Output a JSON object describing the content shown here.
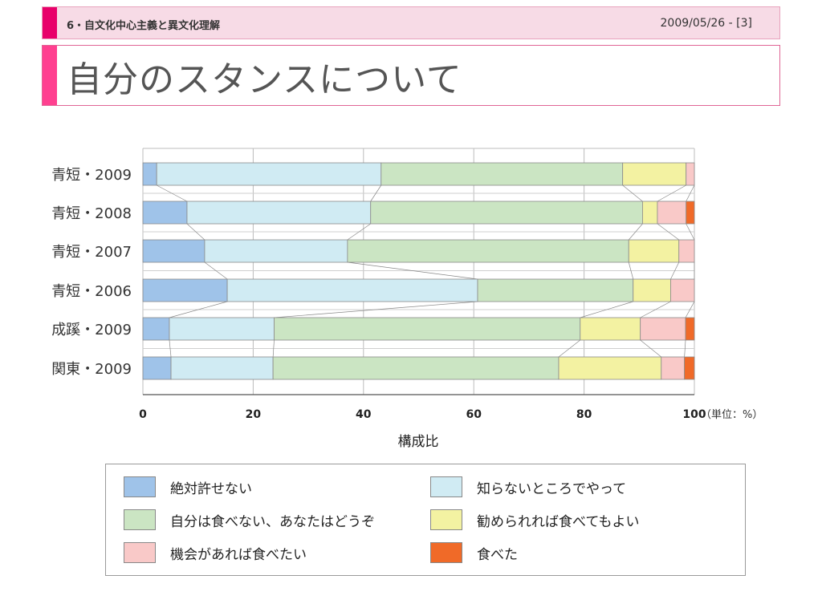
{
  "header": {
    "section": "6・自文化中心主義と異文化理解",
    "date": "2009/05/26 - [3]",
    "title": "自分のスタンスについて"
  },
  "colors": {
    "accent_header": "#e8006a",
    "accent_title": "#ff4090",
    "header_bg": "#f7dbe6"
  },
  "chart_data": {
    "type": "bar",
    "orientation": "horizontal",
    "stacked": true,
    "categories": [
      "青短・2009",
      "青短・2008",
      "青短・2007",
      "青短・2006",
      "成蹊・2009",
      "関東・2009"
    ],
    "series": [
      {
        "name": "絶対許せない",
        "color": "#9fc3e9",
        "values": [
          2.5,
          8.0,
          11.2,
          15.3,
          4.8,
          5.1
        ]
      },
      {
        "name": "知らないところでやって",
        "color": "#d0ebf3",
        "values": [
          40.7,
          33.3,
          25.9,
          45.4,
          19.0,
          18.5
        ]
      },
      {
        "name": "自分は食べない、あなたはどうぞ",
        "color": "#cbe5c3",
        "values": [
          43.8,
          49.3,
          51.0,
          28.2,
          55.5,
          51.8
        ]
      },
      {
        "name": "勧められれば食べてもよい",
        "color": "#f3f2a2",
        "values": [
          11.5,
          2.7,
          9.1,
          6.8,
          10.9,
          18.6
        ]
      },
      {
        "name": "機会があれば食べたい",
        "color": "#f9c9c8",
        "values": [
          1.5,
          5.2,
          2.8,
          4.3,
          8.2,
          4.2
        ]
      },
      {
        "name": "食べた",
        "color": "#f06a28",
        "values": [
          0.0,
          1.5,
          0.0,
          0.0,
          1.6,
          1.8
        ]
      }
    ],
    "xlim": [
      0,
      100
    ],
    "xticks": [
      "0",
      "20",
      "40",
      "60",
      "80",
      "100"
    ],
    "unit_label": "（単位：%）",
    "xlabel": "構成比",
    "grid": true,
    "legend": [
      {
        "label": "絶対許せない",
        "color": "#9fc3e9"
      },
      {
        "label": "知らないところでやって",
        "color": "#d0ebf3"
      },
      {
        "label": "自分は食べない、あなたはどうぞ",
        "color": "#cbe5c3"
      },
      {
        "label": "勧められれば食べてもよい",
        "color": "#f3f2a2"
      },
      {
        "label": "機会があれば食べたい",
        "color": "#f9c9c8"
      },
      {
        "label": "食べた",
        "color": "#f06a28"
      }
    ]
  }
}
